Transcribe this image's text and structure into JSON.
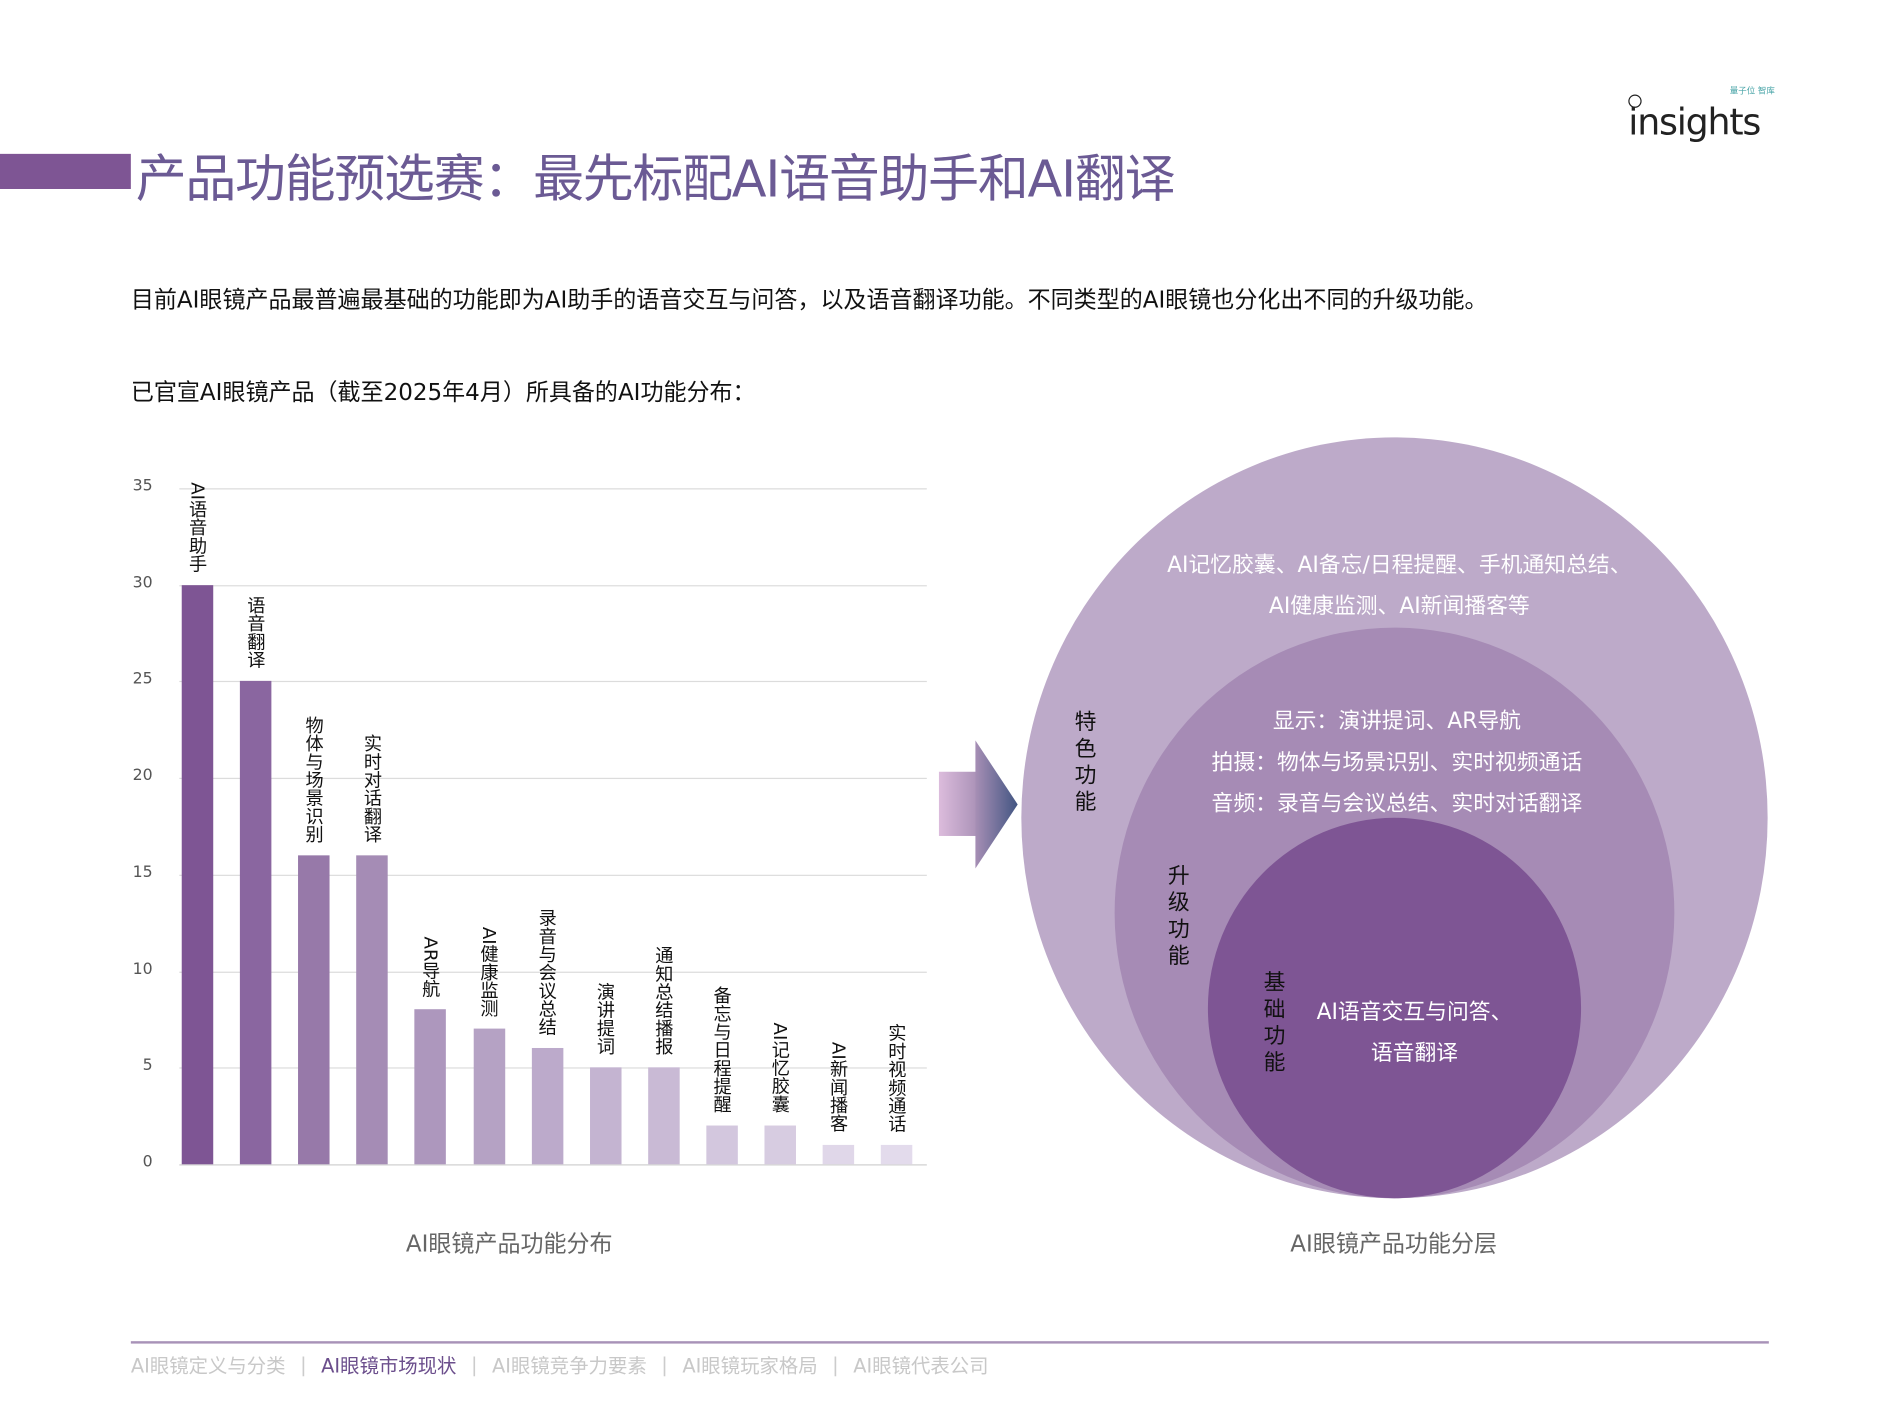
{
  "header": {
    "title": "产品功能预选赛：最先标配AI语音助手和AI翻译",
    "logo_text": "insights",
    "logo_small": "量子位 智库"
  },
  "intro": "目前AI眼镜产品最普遍最基础的功能即为AI助手的语音交互与问答，以及语音翻译功能。不同类型的AI眼镜也分化出不同的升级功能。",
  "subtitle": "已官宣AI眼镜产品（截至2025年4月）所具备的AI功能分布：",
  "chart_data": {
    "type": "bar",
    "title": "AI眼镜产品功能分布",
    "categories": [
      "AI语音助手",
      "语音翻译",
      "物体与场景识别",
      "实时对话翻译",
      "AR导航",
      "AI健康监测",
      "录音与会议总结",
      "演讲提词",
      "通知总结播报",
      "备忘与日程提醒",
      "AI记忆胶囊",
      "AI新闻播客",
      "实时视频通话"
    ],
    "values": [
      30,
      25,
      16,
      16,
      8,
      7,
      6,
      5,
      5,
      2,
      2,
      1,
      1
    ],
    "ylim": [
      0,
      35
    ],
    "yticks": [
      0,
      5,
      10,
      15,
      20,
      25,
      30,
      35
    ],
    "grid": true,
    "colors": [
      "#7e5594",
      "#8a66a0",
      "#9779a9",
      "#a58cb5",
      "#ad97bd",
      "#b5a2c4",
      "#bcaacb",
      "#c4b4d1",
      "#c9bad5",
      "#d3c7de",
      "#d7cce1",
      "#e0d7e9",
      "#e3dbec"
    ]
  },
  "diagram": {
    "caption": "AI眼镜产品功能分层",
    "outer": {
      "label": "特色功能",
      "lines": [
        "AI记忆胶囊、AI备忘/日程提醒、手机通知总结、",
        "AI健康监测、AI新闻播客等"
      ],
      "color": "#bdaac9"
    },
    "middle": {
      "label": "升级功能",
      "lines": [
        "显示：演讲提词、AR导航",
        "拍摄：物体与场景识别、实时视频通话",
        "音频：录音与会议总结、实时对话翻译"
      ],
      "color": "#a68bb5"
    },
    "inner": {
      "label": "基础功能",
      "lines": [
        "AI语音交互与问答、",
        "语音翻译"
      ],
      "color": "#7e5594"
    }
  },
  "footer": {
    "nav": [
      {
        "label": "AI眼镜定义与分类",
        "active": false
      },
      {
        "label": "AI眼镜市场现状",
        "active": true
      },
      {
        "label": "AI眼镜竞争力要素",
        "active": false
      },
      {
        "label": "AI眼镜玩家格局",
        "active": false
      },
      {
        "label": "AI眼镜代表公司",
        "active": false
      }
    ],
    "separator": "|"
  }
}
